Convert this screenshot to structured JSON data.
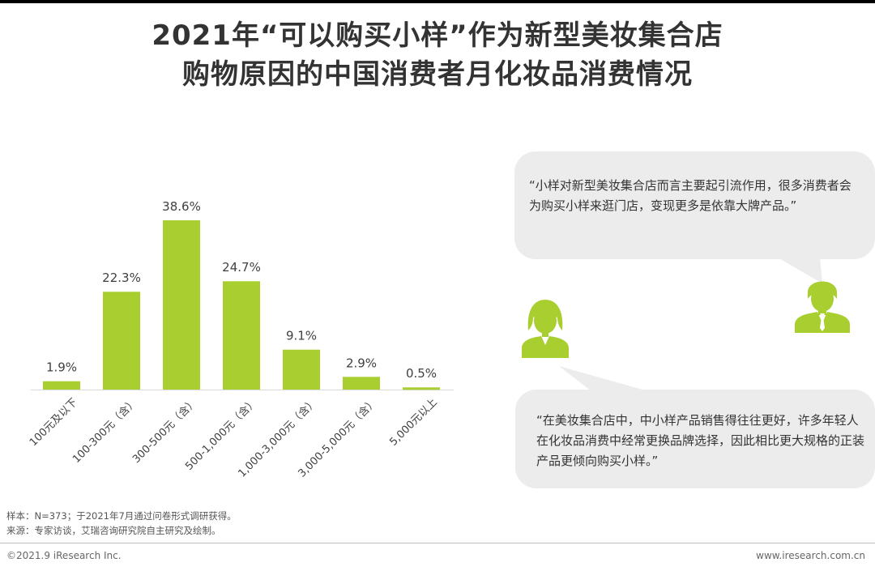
{
  "title": {
    "line1": "2021年“可以购买小样”作为新型美妆集合店",
    "line2": "购物原因的中国消费者月化妆品消费情况"
  },
  "chart_data": {
    "type": "bar",
    "categories": [
      "100元及以下",
      "100-300元（含）",
      "300-500元（含）",
      "500-1,000元（含）",
      "1,000-3,000元（含）",
      "3,000-5,000元（含）",
      "5,000元以上"
    ],
    "values": [
      1.9,
      22.3,
      38.6,
      24.7,
      9.1,
      2.9,
      0.5
    ],
    "value_labels": [
      "1.9%",
      "22.3%",
      "38.6%",
      "24.7%",
      "9.1%",
      "2.9%",
      "0.5%"
    ],
    "ylim": [
      0,
      40
    ],
    "grid": false,
    "bar_color": "#a8cf2f"
  },
  "quotes": [
    "“小样对新型美妆集合店而言主要起引流作用，很多消费者会为购买小样来逛门店，变现更多是依靠大牌产品。”",
    "“在美妆集合店中，中小样产品销售得往往更好，许多年轻人在化妆品消费中经常更换品牌选择，因此相比更大规格的正装产品更倾向购买小样。”"
  ],
  "icons": {
    "male": "man-avatar-icon",
    "female": "woman-avatar-icon",
    "color": "#a8cf2f"
  },
  "footnotes": {
    "sample": "样本：N=373；于2021年7月通过问卷形式调研获得。",
    "source": "来源：专家访谈，艾瑞咨询研究院自主研究及绘制。"
  },
  "footer": {
    "copyright": "©2021.9 iResearch Inc.",
    "website": "www.iresearch.com.cn"
  }
}
